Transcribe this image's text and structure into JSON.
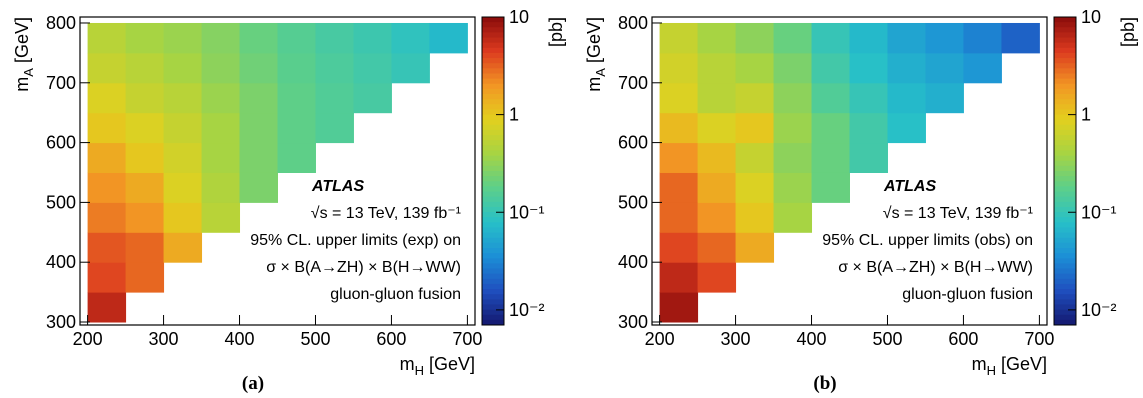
{
  "chart_data": [
    {
      "type": "heatmap",
      "panel_label": "(a)",
      "x_label": "mH [GeV]",
      "y_label": "mA [GeV]",
      "colorbar_label": "[pb]",
      "annotations": [
        "ATLAS",
        "√s = 13 TeV, 139 fb⁻¹",
        "95% CL. upper limits (exp) on",
        "σ × B(A→ZH) × B(H→WW)",
        "gluon-gluon fusion"
      ],
      "xbins": [
        200,
        250,
        300,
        350,
        400,
        450,
        500,
        550,
        600,
        650,
        700
      ],
      "ybins": [
        300,
        350,
        400,
        450,
        500,
        550,
        600,
        650,
        700,
        750,
        800
      ],
      "xlim": [
        190,
        710
      ],
      "ylim": [
        295,
        810
      ],
      "xticks": [
        200,
        300,
        400,
        500,
        600,
        700
      ],
      "yticks": [
        300,
        400,
        500,
        600,
        700,
        800
      ],
      "zlim": [
        0.007,
        10
      ],
      "log_z": true,
      "zticks": [
        10,
        1,
        {
          "value": 0.1,
          "label": "10⁻¹"
        },
        {
          "value": 0.01,
          "label": "10⁻²"
        }
      ],
      "colormap": [
        "#14186e",
        "#1f4fbf",
        "#1c8fd6",
        "#27c0c8",
        "#5ccf8a",
        "#a6d443",
        "#e3d01e",
        "#f29624",
        "#dc3a1f",
        "#8a0b0b"
      ],
      "z": [
        [
          6,
          null,
          null,
          null,
          null,
          null,
          null,
          null,
          null,
          null
        ],
        [
          4,
          3,
          null,
          null,
          null,
          null,
          null,
          null,
          null,
          null
        ],
        [
          3.5,
          3,
          1.5,
          null,
          null,
          null,
          null,
          null,
          null,
          null
        ],
        [
          2.5,
          2,
          1,
          0.5,
          null,
          null,
          null,
          null,
          null,
          null
        ],
        [
          2,
          1.5,
          0.8,
          0.45,
          0.25,
          null,
          null,
          null,
          null,
          null
        ],
        [
          1.5,
          1,
          0.7,
          0.4,
          0.25,
          0.18,
          null,
          null,
          null,
          null
        ],
        [
          1,
          0.8,
          0.6,
          0.4,
          0.25,
          0.18,
          0.15,
          null,
          null,
          null
        ],
        [
          0.8,
          0.6,
          0.5,
          0.35,
          0.25,
          0.18,
          0.15,
          0.13,
          null,
          null
        ],
        [
          0.6,
          0.5,
          0.4,
          0.3,
          0.22,
          0.17,
          0.14,
          0.12,
          0.1,
          null
        ],
        [
          0.5,
          0.4,
          0.35,
          0.28,
          0.2,
          0.16,
          0.13,
          0.11,
          0.09,
          0.07
        ]
      ]
    },
    {
      "type": "heatmap",
      "panel_label": "(b)",
      "x_label": "mH [GeV]",
      "y_label": "mA [GeV]",
      "colorbar_label": "[pb]",
      "annotations": [
        "ATLAS",
        "√s = 13 TeV, 139 fb⁻¹",
        "95% CL. upper limits (obs) on",
        "σ × B(A→ZH) × B(H→WW)",
        "gluon-gluon fusion"
      ],
      "xbins": [
        200,
        250,
        300,
        350,
        400,
        450,
        500,
        550,
        600,
        650,
        700
      ],
      "ybins": [
        300,
        350,
        400,
        450,
        500,
        550,
        600,
        650,
        700,
        750,
        800
      ],
      "xlim": [
        190,
        710
      ],
      "ylim": [
        295,
        810
      ],
      "xticks": [
        200,
        300,
        400,
        500,
        600,
        700
      ],
      "yticks": [
        300,
        400,
        500,
        600,
        700,
        800
      ],
      "zlim": [
        0.007,
        10
      ],
      "log_z": true,
      "zticks": [
        10,
        1,
        {
          "value": 0.1,
          "label": "10⁻¹"
        },
        {
          "value": 0.01,
          "label": "10⁻²"
        }
      ],
      "colormap": [
        "#14186e",
        "#1f4fbf",
        "#1c8fd6",
        "#27c0c8",
        "#5ccf8a",
        "#a6d443",
        "#e3d01e",
        "#f29624",
        "#dc3a1f",
        "#8a0b0b"
      ],
      "z": [
        [
          8,
          null,
          null,
          null,
          null,
          null,
          null,
          null,
          null,
          null
        ],
        [
          6,
          4,
          null,
          null,
          null,
          null,
          null,
          null,
          null,
          null
        ],
        [
          4,
          3,
          1.5,
          null,
          null,
          null,
          null,
          null,
          null,
          null
        ],
        [
          3,
          2,
          1,
          0.4,
          null,
          null,
          null,
          null,
          null,
          null
        ],
        [
          3,
          1.5,
          0.8,
          0.35,
          0.2,
          null,
          null,
          null,
          null,
          null
        ],
        [
          2,
          1.2,
          0.6,
          0.3,
          0.2,
          0.12,
          null,
          null,
          null,
          null
        ],
        [
          1.2,
          0.8,
          1,
          0.35,
          0.2,
          0.12,
          0.08,
          null,
          null,
          null
        ],
        [
          0.8,
          0.5,
          0.6,
          0.3,
          0.15,
          0.1,
          0.07,
          0.06,
          null,
          null
        ],
        [
          0.7,
          0.5,
          0.4,
          0.25,
          0.12,
          0.08,
          0.06,
          0.05,
          0.04,
          null
        ],
        [
          0.6,
          0.4,
          0.3,
          0.2,
          0.1,
          0.07,
          0.05,
          0.04,
          0.03,
          0.02
        ]
      ]
    }
  ]
}
